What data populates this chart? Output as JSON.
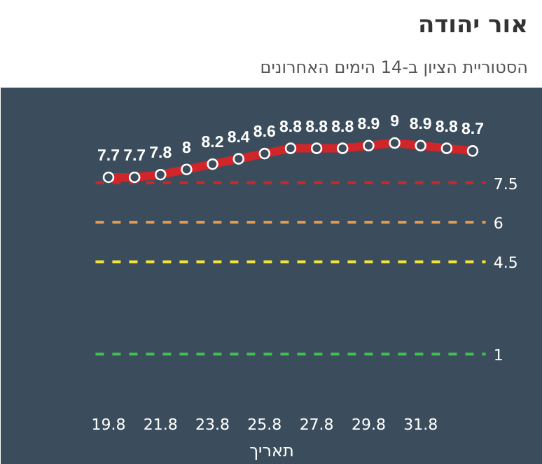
{
  "chart_data": {
    "type": "line",
    "title": "אור יהודה",
    "subtitle": "הסטוריית הציון ב-14 הימים האחרונים",
    "xlabel": "תאריך",
    "categories": [
      "19.8",
      null,
      "21.8",
      null,
      "23.8",
      null,
      "25.8",
      null,
      "27.8",
      null,
      "29.8",
      null,
      "31.8",
      null,
      null
    ],
    "series": [
      {
        "color": "#d0262a",
        "values": [
          7.7,
          7.7,
          7.8,
          8,
          8.2,
          8.4,
          8.6,
          8.8,
          8.8,
          8.8,
          8.9,
          9,
          8.9,
          8.8,
          8.7
        ]
      }
    ],
    "ylim": [
      -0.8,
      11.1
    ],
    "tick_labels": "x",
    "grid": false,
    "marker": "circle",
    "line_style": "solid",
    "data_labels": true,
    "ref_lines": [
      {
        "axis": "y",
        "value": 7.5,
        "label": "7.5",
        "color": "#d0262a",
        "line_style": "dashed"
      },
      {
        "axis": "y",
        "value": 6,
        "label": "6",
        "color": "#e39a4c",
        "line_style": "dashed"
      },
      {
        "axis": "y",
        "value": 4.5,
        "label": "4.5",
        "color": "#f2e33c",
        "line_style": "dashed"
      },
      {
        "axis": "y",
        "value": 1,
        "label": "1",
        "color": "#3fc34f",
        "line_style": "dashed"
      }
    ]
  }
}
